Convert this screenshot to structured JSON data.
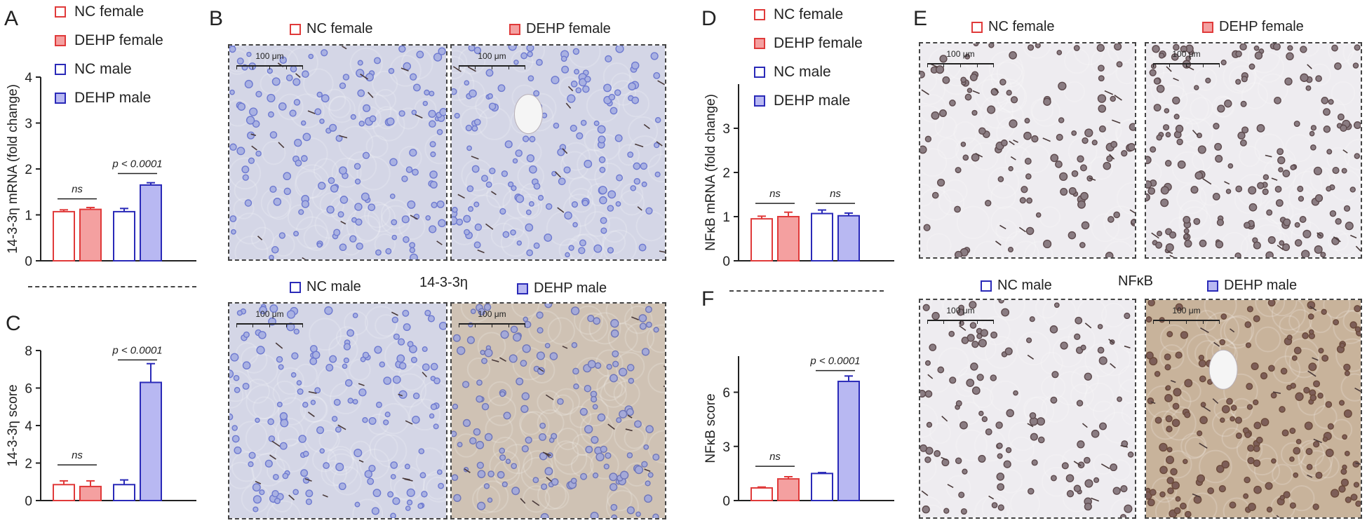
{
  "colors": {
    "nc_female": "#e03a3a",
    "dehp_female": "#f4a0a0",
    "nc_male": "#2a2ab8",
    "dehp_male": "#b8b8f2",
    "blue_tissue": "#c9cde2",
    "brown_tissue": "#c6b39b",
    "nucleus_blue": "#6e7ad0",
    "nucleus_brown": "#6b4a3a"
  },
  "panels": {
    "A": "A",
    "B": "B",
    "C": "C",
    "D": "D",
    "E": "E",
    "F": "F"
  },
  "legend": {
    "items": [
      "NC female",
      "DEHP female",
      "NC male",
      "DEHP male"
    ]
  },
  "micrographs": {
    "B": {
      "title": "14-3-3η",
      "labels": [
        "NC female",
        "DEHP female",
        "NC male",
        "DEHP male"
      ],
      "scale": "100 μm"
    },
    "E": {
      "title": "NFκB",
      "labels": [
        "NC female",
        "DEHP female",
        "NC male",
        "DEHP male"
      ],
      "scale": "100 μm"
    }
  },
  "chart_data": [
    {
      "panel": "A",
      "type": "bar",
      "categories": [
        "NC female",
        "DEHP female",
        "NC male",
        "DEHP male"
      ],
      "values": [
        1.07,
        1.12,
        1.07,
        1.65
      ],
      "errors": [
        0.04,
        0.04,
        0.07,
        0.05
      ],
      "ylabel": "14-3-3η mRNA (fold change)",
      "ylim": [
        0,
        4
      ],
      "yticks": [
        0,
        1,
        2,
        3,
        4
      ],
      "annotations": [
        {
          "text": "ns",
          "from": 0,
          "to": 1,
          "y": 1.35
        },
        {
          "text": "p < 0.0001",
          "from": 2,
          "to": 3,
          "y": 1.9
        }
      ]
    },
    {
      "panel": "C",
      "type": "bar",
      "categories": [
        "NC female",
        "DEHP female",
        "NC male",
        "DEHP male"
      ],
      "values": [
        0.85,
        0.75,
        0.85,
        6.3
      ],
      "errors": [
        0.2,
        0.3,
        0.25,
        1.0
      ],
      "ylabel": "14-3-3η score",
      "ylim": [
        0,
        8
      ],
      "yticks": [
        0,
        2,
        4,
        6,
        8
      ],
      "annotations": [
        {
          "text": "ns",
          "from": 0,
          "to": 1,
          "y": 1.9
        },
        {
          "text": "p < 0.0001",
          "from": 2,
          "to": 3,
          "y": 7.5
        }
      ]
    },
    {
      "panel": "D",
      "type": "bar",
      "categories": [
        "NC female",
        "DEHP female",
        "NC male",
        "DEHP male"
      ],
      "values": [
        0.95,
        1.0,
        1.07,
        1.02
      ],
      "errors": [
        0.06,
        0.1,
        0.08,
        0.06
      ],
      "ylabel": "NFκB mRNA (fold change)",
      "ylim": [
        0,
        4
      ],
      "yticks": [
        0,
        1,
        2,
        3
      ],
      "annotations": [
        {
          "text": "ns",
          "from": 0,
          "to": 1,
          "y": 1.3
        },
        {
          "text": "ns",
          "from": 2,
          "to": 3,
          "y": 1.3
        }
      ]
    },
    {
      "panel": "F",
      "type": "bar",
      "categories": [
        "NC female",
        "DEHP female",
        "NC male",
        "DEHP male"
      ],
      "values": [
        0.7,
        1.2,
        1.5,
        6.6
      ],
      "errors": [
        0.05,
        0.12,
        0.05,
        0.3
      ],
      "ylabel": "NFκB score",
      "ylim": [
        0,
        8
      ],
      "yticks": [
        0,
        3,
        6
      ],
      "annotations": [
        {
          "text": "ns",
          "from": 0,
          "to": 1,
          "y": 1.9
        },
        {
          "text": "p < 0.0001",
          "from": 2,
          "to": 3,
          "y": 7.2
        }
      ]
    }
  ]
}
